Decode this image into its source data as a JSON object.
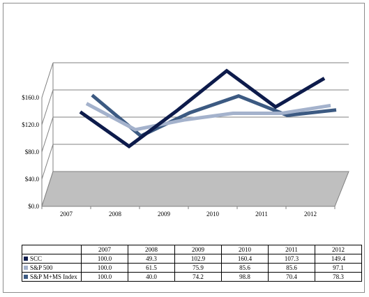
{
  "chart_data": {
    "type": "line",
    "categories": [
      "2007",
      "2008",
      "2009",
      "2010",
      "2011",
      "2012"
    ],
    "series": [
      {
        "name": "SCC",
        "values": [
          "100.0",
          "49.3",
          "102.9",
          "160.4",
          "107.3",
          "149.4"
        ],
        "color": "#0d1b4b"
      },
      {
        "name": "S&P 500",
        "values": [
          "100.0",
          "61.5",
          "75.9",
          "85.6",
          "85.6",
          "97.1"
        ],
        "color": "#a4b2cc"
      },
      {
        "name": "S&P M+MS Index",
        "values": [
          "100.0",
          "40.0",
          "74.2",
          "98.8",
          "70.4",
          "78.3"
        ],
        "color": "#3c5a82"
      }
    ],
    "y_ticks": [
      "$0.0",
      "$40.0",
      "$80.0",
      "$120.0",
      "$160.0"
    ],
    "ylim": [
      0,
      160
    ],
    "grid": true,
    "legend": "data-table below chart",
    "floor_color": "#bfbfbf",
    "title": "",
    "xlabel": "",
    "ylabel": ""
  }
}
